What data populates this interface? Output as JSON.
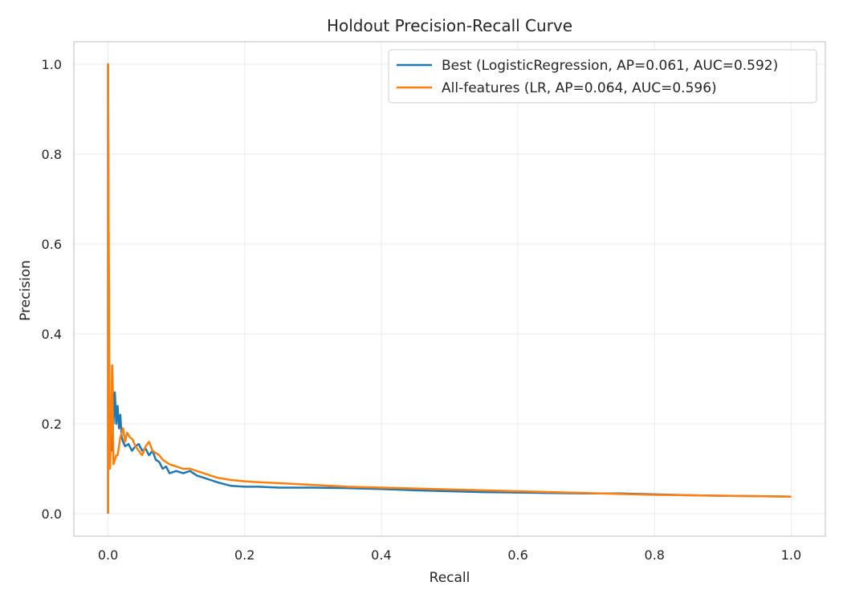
{
  "chart_data": {
    "type": "line",
    "title": "Holdout Precision-Recall Curve",
    "xlabel": "Recall",
    "ylabel": "Precision",
    "xlim": [
      -0.05,
      1.05
    ],
    "ylim": [
      -0.05,
      1.05
    ],
    "xticks": [
      0.0,
      0.2,
      0.4,
      0.6,
      0.8,
      1.0
    ],
    "yticks": [
      0.0,
      0.2,
      0.4,
      0.6,
      0.8,
      1.0
    ],
    "xtick_labels": [
      "0.0",
      "0.2",
      "0.4",
      "0.6",
      "0.8",
      "1.0"
    ],
    "ytick_labels": [
      "0.0",
      "0.2",
      "0.4",
      "0.6",
      "0.8",
      "1.0"
    ],
    "grid": true,
    "legend_position": "top-right",
    "series": [
      {
        "name": "Best (LogisticRegression, AP=0.061, AUC=0.592)",
        "color": "#1f77b4",
        "x": [
          0.0,
          0.0,
          0.002,
          0.003,
          0.005,
          0.006,
          0.008,
          0.01,
          0.012,
          0.014,
          0.016,
          0.018,
          0.02,
          0.022,
          0.025,
          0.03,
          0.035,
          0.04,
          0.045,
          0.05,
          0.055,
          0.06,
          0.065,
          0.07,
          0.075,
          0.08,
          0.085,
          0.09,
          0.1,
          0.11,
          0.12,
          0.13,
          0.14,
          0.15,
          0.16,
          0.18,
          0.2,
          0.22,
          0.25,
          0.3,
          0.35,
          0.4,
          0.45,
          0.5,
          0.55,
          0.6,
          0.65,
          0.7,
          0.75,
          0.8,
          0.85,
          0.9,
          0.95,
          1.0
        ],
        "y": [
          0.0,
          1.0,
          0.15,
          0.2,
          0.14,
          0.33,
          0.2,
          0.27,
          0.2,
          0.24,
          0.19,
          0.22,
          0.17,
          0.16,
          0.15,
          0.155,
          0.14,
          0.15,
          0.155,
          0.14,
          0.145,
          0.13,
          0.14,
          0.12,
          0.115,
          0.1,
          0.105,
          0.09,
          0.095,
          0.09,
          0.095,
          0.085,
          0.08,
          0.075,
          0.07,
          0.062,
          0.06,
          0.06,
          0.058,
          0.058,
          0.057,
          0.055,
          0.052,
          0.05,
          0.048,
          0.047,
          0.046,
          0.045,
          0.045,
          0.043,
          0.041,
          0.04,
          0.039,
          0.038
        ]
      },
      {
        "name": "All-features (LR, AP=0.064, AUC=0.596)",
        "color": "#ff7f0e",
        "x": [
          0.0,
          0.0,
          0.002,
          0.003,
          0.004,
          0.006,
          0.008,
          0.01,
          0.012,
          0.014,
          0.016,
          0.018,
          0.02,
          0.022,
          0.025,
          0.028,
          0.032,
          0.036,
          0.04,
          0.045,
          0.05,
          0.055,
          0.06,
          0.065,
          0.07,
          0.075,
          0.08,
          0.09,
          0.1,
          0.11,
          0.12,
          0.13,
          0.14,
          0.15,
          0.16,
          0.18,
          0.2,
          0.22,
          0.25,
          0.3,
          0.35,
          0.4,
          0.45,
          0.5,
          0.55,
          0.6,
          0.65,
          0.7,
          0.75,
          0.8,
          0.85,
          0.9,
          0.95,
          1.0
        ],
        "y": [
          0.0,
          1.0,
          0.2,
          0.1,
          0.16,
          0.33,
          0.11,
          0.12,
          0.13,
          0.13,
          0.15,
          0.17,
          0.18,
          0.19,
          0.16,
          0.18,
          0.17,
          0.165,
          0.15,
          0.14,
          0.13,
          0.15,
          0.16,
          0.14,
          0.135,
          0.13,
          0.12,
          0.11,
          0.105,
          0.1,
          0.1,
          0.095,
          0.09,
          0.085,
          0.08,
          0.075,
          0.072,
          0.07,
          0.068,
          0.064,
          0.06,
          0.058,
          0.056,
          0.054,
          0.052,
          0.05,
          0.048,
          0.046,
          0.044,
          0.042,
          0.041,
          0.04,
          0.039,
          0.038
        ]
      }
    ]
  }
}
